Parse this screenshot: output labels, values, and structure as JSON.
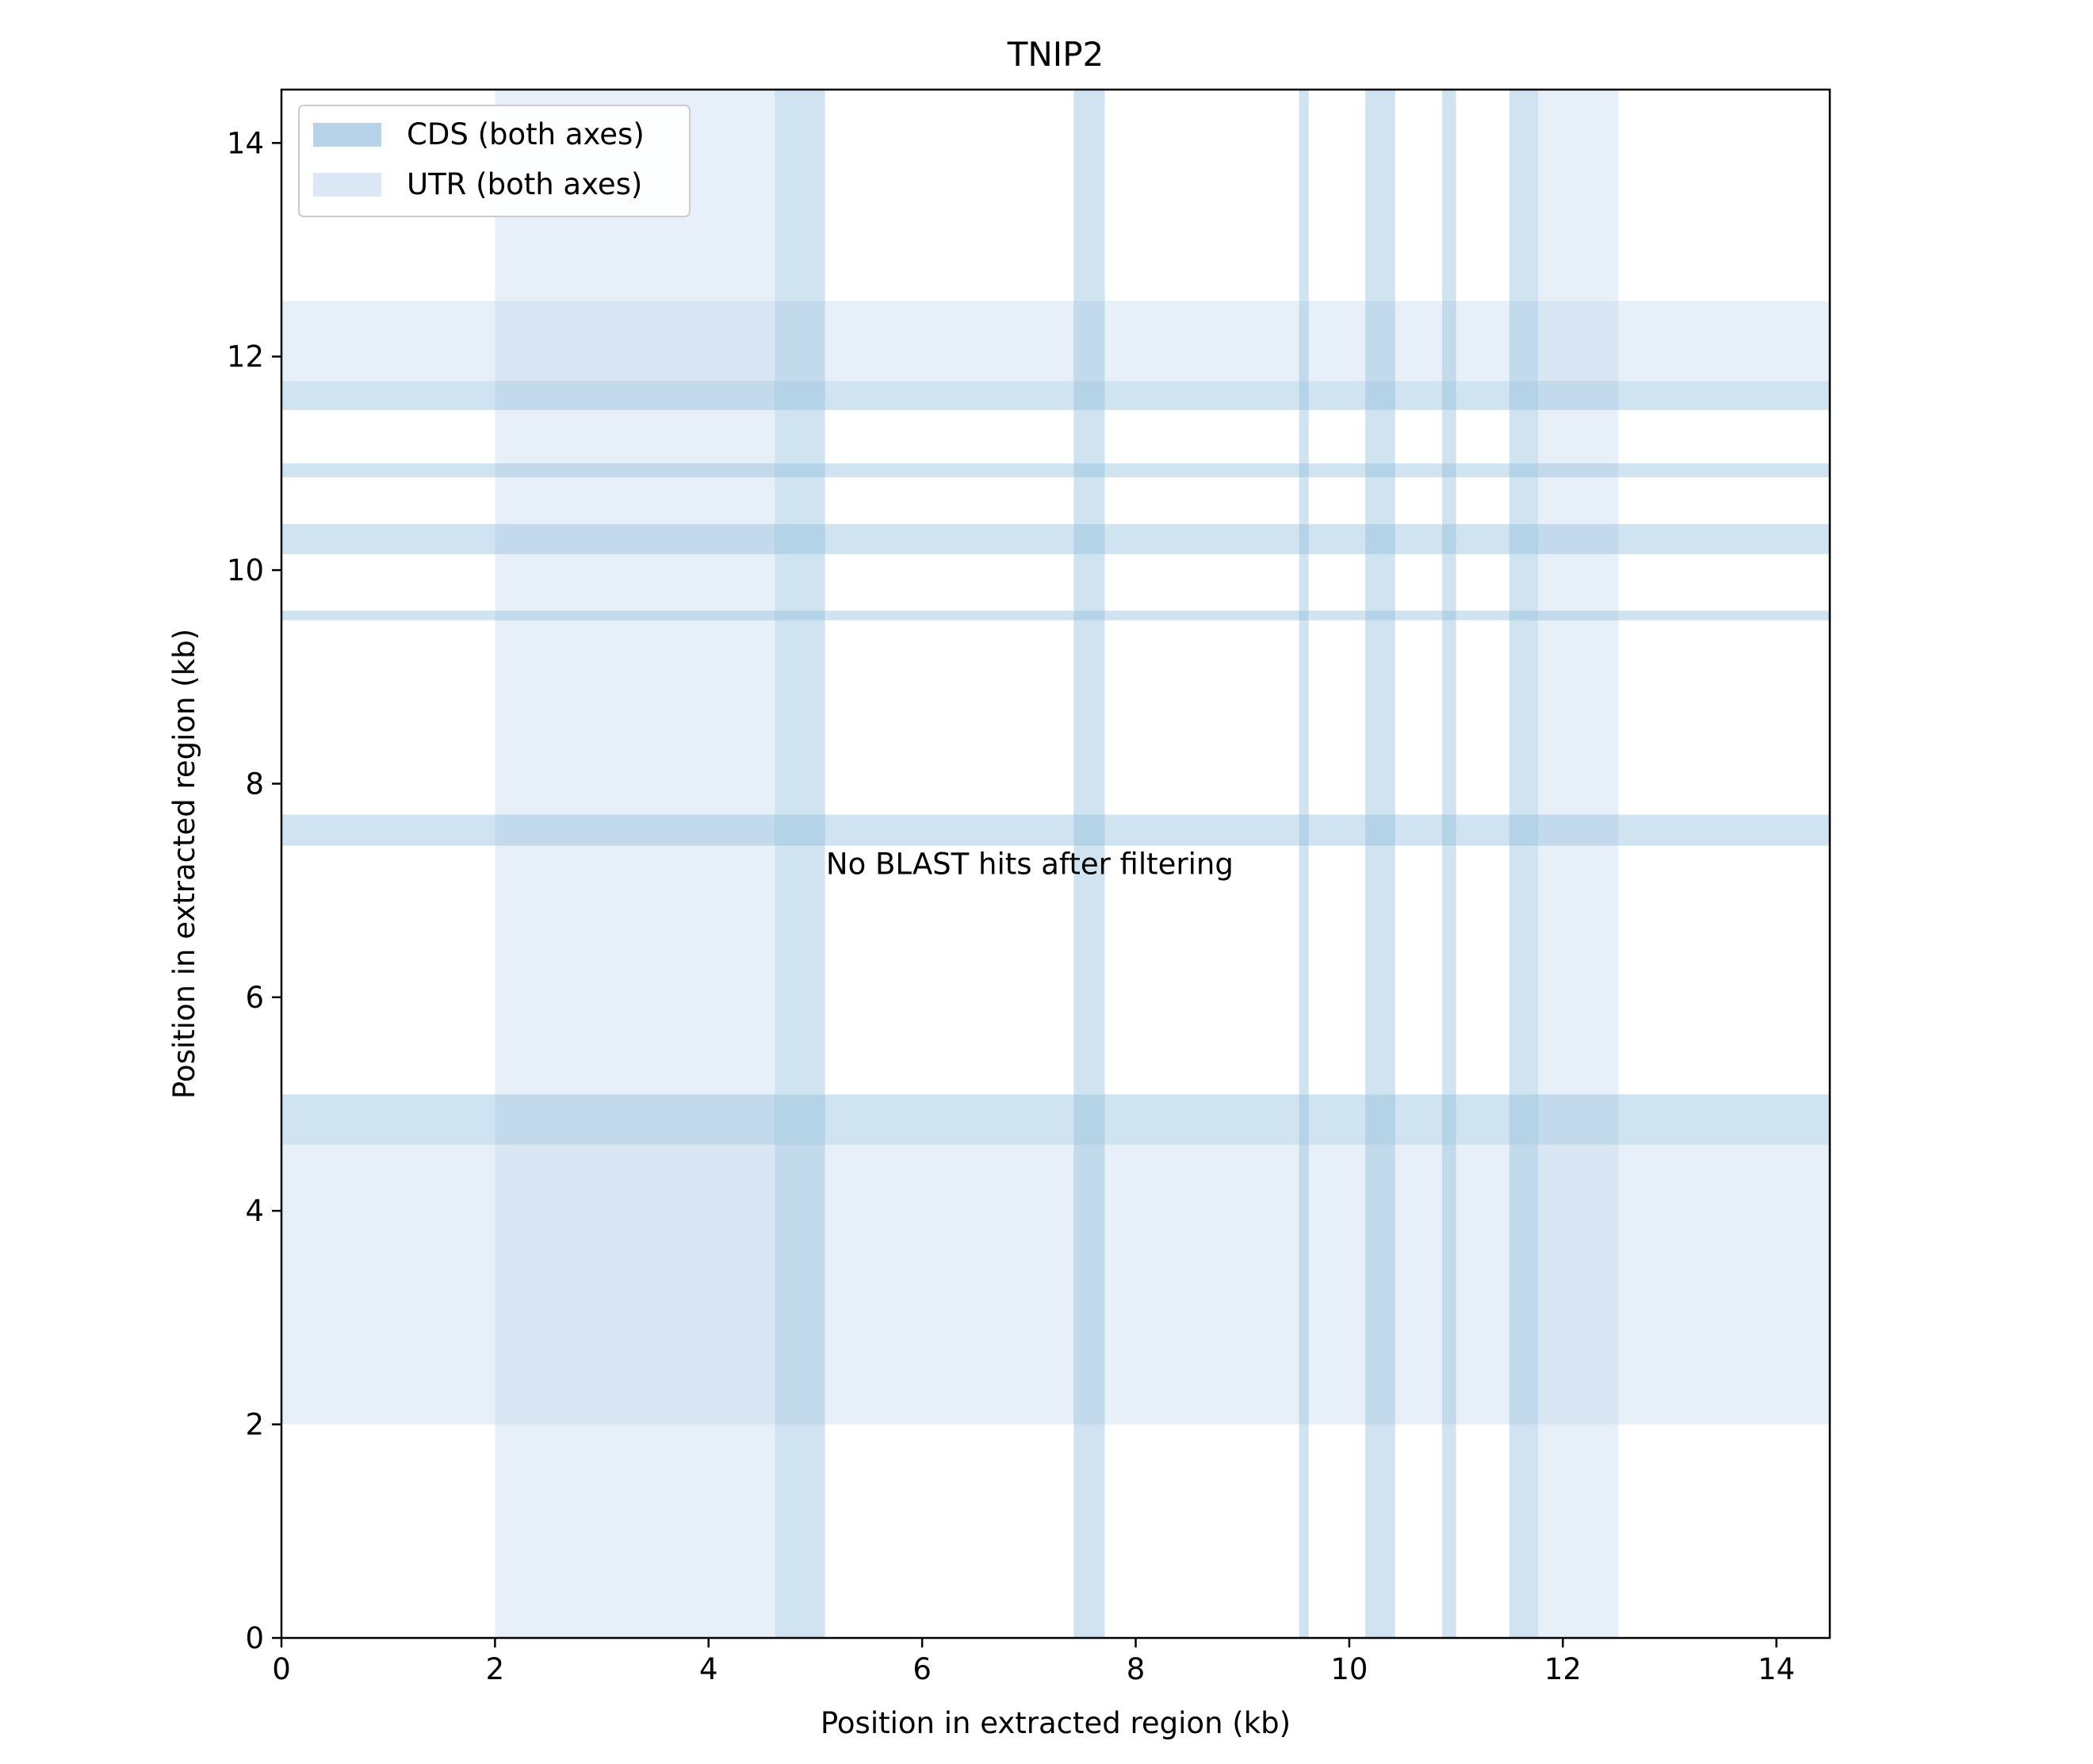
{
  "chart_data": {
    "type": "dotplot",
    "title": "TNIP2",
    "xlabel": "Position in extracted region (kb)",
    "ylabel": "Position in extracted region (kb)",
    "xlim": [
      0,
      14.5
    ],
    "ylim": [
      0,
      14.5
    ],
    "xticks": [
      0,
      2,
      4,
      6,
      8,
      10,
      12,
      14
    ],
    "yticks": [
      0,
      2,
      4,
      6,
      8,
      10,
      12,
      14
    ],
    "legend": {
      "position": "upper-left",
      "entries": [
        {
          "label": "CDS (both axes)",
          "color": "#b7d3e9"
        },
        {
          "label": "UTR (both axes)",
          "color": "#dce8f5"
        }
      ]
    },
    "annotation": {
      "text": "No BLAST hits after filtering",
      "x": 5.1,
      "y": 7.25
    },
    "utr_regions": [
      [
        2.0,
        4.62
      ],
      [
        11.77,
        12.52
      ]
    ],
    "cds_regions": [
      [
        4.62,
        5.09
      ],
      [
        7.42,
        7.71
      ],
      [
        9.53,
        9.62
      ],
      [
        10.15,
        10.43
      ],
      [
        10.87,
        11.0
      ],
      [
        11.5,
        11.77
      ]
    ],
    "colors": {
      "cds": "#b7d3e9",
      "utr": "#dce8f5",
      "axes": "#000000"
    }
  }
}
